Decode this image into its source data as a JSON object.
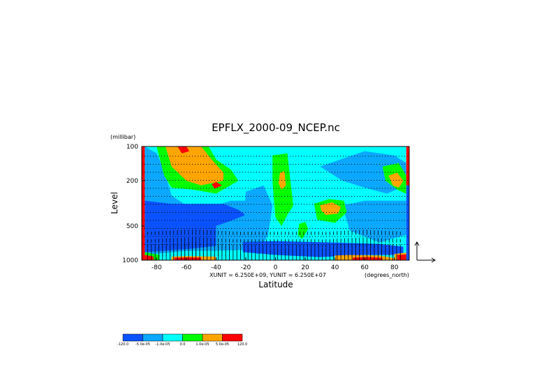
{
  "chart_data": {
    "type": "heatmap",
    "title": "EPFLX_2000-09_NCEP.nc",
    "xlabel": "Latitude",
    "ylabel": "Level",
    "y_unit": "(millibar)",
    "x_unit_note": "(degrees_north)",
    "x_range": [
      -90,
      90
    ],
    "y_range": [
      1000,
      100
    ],
    "y_scale": "log",
    "x_ticks": [
      -80,
      -60,
      -40,
      -20,
      0,
      20,
      40,
      60,
      80
    ],
    "x_tick_labels": [
      "-80",
      "-60",
      "-40",
      "-20",
      "0",
      "20",
      "40",
      "60",
      "80"
    ],
    "y_ticks": [
      100,
      200,
      500,
      1000
    ],
    "y_tick_labels": [
      "100",
      "200",
      "500",
      "1000"
    ],
    "vector_units": "XUNIT = 6.250E+09, YUNIT = 6.250E+07",
    "colorbar": {
      "labels": [
        "-120.0",
        "-5.0e-05",
        "-1.0e-05",
        "0.0",
        "1.0e-05",
        "5.0e-05",
        "120.0"
      ],
      "colors": [
        "#0b52ff",
        "#0aa8ff",
        "#00ffff",
        "#00ff00",
        "#ffa500",
        "#ff0000"
      ]
    },
    "field_regions": [
      {
        "shape": "rect",
        "color": "#00ffff",
        "x0": -88,
        "x1": 88,
        "y0": 1000,
        "y1": 100
      },
      {
        "shape": "poly",
        "color": "#0aa8ff",
        "points": [
          [
            -88,
            100
          ],
          [
            -80,
            115
          ],
          [
            -75,
            160
          ],
          [
            -70,
            270
          ],
          [
            -60,
            330
          ],
          [
            -50,
            320
          ],
          [
            -40,
            330
          ],
          [
            -30,
            300
          ],
          [
            -20,
            300
          ],
          [
            -15,
            350
          ],
          [
            -10,
            450
          ],
          [
            -10,
            800
          ],
          [
            -30,
            820
          ],
          [
            -60,
            830
          ],
          [
            -88,
            900
          ]
        ]
      },
      {
        "shape": "poly",
        "color": "#0b52ff",
        "points": [
          [
            -88,
            300
          ],
          [
            -70,
            320
          ],
          [
            -50,
            320
          ],
          [
            -35,
            320
          ],
          [
            -25,
            360
          ],
          [
            -20,
            400
          ],
          [
            -30,
            450
          ],
          [
            -40,
            500
          ],
          [
            -40,
            750
          ],
          [
            -60,
            800
          ],
          [
            -88,
            850
          ]
        ]
      },
      {
        "shape": "poly",
        "color": "#0aa8ff",
        "points": [
          [
            -20,
            250
          ],
          [
            -8,
            220
          ],
          [
            -2,
            330
          ],
          [
            -5,
            600
          ],
          [
            -12,
            900
          ],
          [
            -22,
            600
          ]
        ]
      },
      {
        "shape": "poly",
        "color": "#0aa8ff",
        "points": [
          [
            30,
            150
          ],
          [
            60,
            110
          ],
          [
            80,
            120
          ],
          [
            88,
            140
          ],
          [
            88,
            220
          ],
          [
            75,
            260
          ],
          [
            60,
            230
          ],
          [
            45,
            200
          ]
        ]
      },
      {
        "shape": "poly",
        "color": "#0b52ff",
        "points": [
          [
            60,
            320
          ],
          [
            70,
            300
          ],
          [
            80,
            310
          ],
          [
            85,
            380
          ],
          [
            80,
            500
          ],
          [
            68,
            520
          ],
          [
            60,
            450
          ]
        ]
      },
      {
        "shape": "poly",
        "color": "#0aa8ff",
        "points": [
          [
            45,
            330
          ],
          [
            60,
            300
          ],
          [
            88,
            300
          ],
          [
            88,
            600
          ],
          [
            70,
            700
          ],
          [
            50,
            550
          ]
        ]
      },
      {
        "shape": "poly",
        "color": "#0b52ff",
        "points": [
          [
            -22,
            690
          ],
          [
            0,
            680
          ],
          [
            40,
            700
          ],
          [
            70,
            720
          ],
          [
            86,
            760
          ],
          [
            86,
            900
          ],
          [
            60,
            900
          ],
          [
            30,
            940
          ],
          [
            0,
            900
          ],
          [
            -22,
            850
          ]
        ]
      },
      {
        "shape": "poly",
        "color": "#00ff00",
        "points": [
          [
            -80,
            100
          ],
          [
            -45,
            100
          ],
          [
            -40,
            130
          ],
          [
            -30,
            160
          ],
          [
            -25,
            200
          ],
          [
            -40,
            260
          ],
          [
            -55,
            240
          ],
          [
            -70,
            230
          ],
          [
            -75,
            180
          ]
        ]
      },
      {
        "shape": "poly",
        "color": "#ffa500",
        "points": [
          [
            -74,
            100
          ],
          [
            -50,
            100
          ],
          [
            -43,
            130
          ],
          [
            -35,
            170
          ],
          [
            -35,
            200
          ],
          [
            -50,
            220
          ],
          [
            -60,
            200
          ],
          [
            -70,
            150
          ]
        ]
      },
      {
        "shape": "poly",
        "color": "#ff0000",
        "points": [
          [
            -66,
            100
          ],
          [
            -60,
            100
          ],
          [
            -58,
            110
          ],
          [
            -63,
            115
          ]
        ]
      },
      {
        "shape": "poly",
        "color": "#ff0000",
        "points": [
          [
            -43,
            215
          ],
          [
            -40,
            205
          ],
          [
            -36,
            220
          ],
          [
            -41,
            235
          ]
        ]
      },
      {
        "shape": "poly",
        "color": "#00ff00",
        "points": [
          [
            -2,
            120
          ],
          [
            8,
            115
          ],
          [
            10,
            200
          ],
          [
            12,
            330
          ],
          [
            8,
            400
          ],
          [
            4,
            500
          ],
          [
            0,
            420
          ],
          [
            -1,
            300
          ],
          [
            -2,
            200
          ]
        ]
      },
      {
        "shape": "poly",
        "color": "#ffa500",
        "points": [
          [
            3,
            170
          ],
          [
            6,
            165
          ],
          [
            7,
            220
          ],
          [
            4,
            240
          ],
          [
            2,
            210
          ]
        ]
      },
      {
        "shape": "poly",
        "color": "#00ff00",
        "points": [
          [
            16,
            480
          ],
          [
            20,
            460
          ],
          [
            22,
            530
          ],
          [
            18,
            650
          ],
          [
            15,
            600
          ]
        ]
      },
      {
        "shape": "poly",
        "color": "#00ff00",
        "points": [
          [
            26,
            320
          ],
          [
            36,
            290
          ],
          [
            46,
            300
          ],
          [
            48,
            380
          ],
          [
            40,
            470
          ],
          [
            28,
            440
          ]
        ]
      },
      {
        "shape": "poly",
        "color": "#ffa500",
        "points": [
          [
            30,
            330
          ],
          [
            38,
            310
          ],
          [
            44,
            340
          ],
          [
            42,
            390
          ],
          [
            34,
            400
          ],
          [
            31,
            370
          ]
        ]
      },
      {
        "shape": "poly",
        "color": "#00ff00",
        "points": [
          [
            72,
            150
          ],
          [
            83,
            140
          ],
          [
            88,
            180
          ],
          [
            88,
            260
          ],
          [
            82,
            240
          ],
          [
            74,
            200
          ]
        ]
      },
      {
        "shape": "poly",
        "color": "#ffa500",
        "points": [
          [
            76,
            180
          ],
          [
            82,
            170
          ],
          [
            86,
            200
          ],
          [
            83,
            230
          ],
          [
            79,
            220
          ]
        ]
      },
      {
        "shape": "poly",
        "color": "#ffa500",
        "points": [
          [
            -70,
            930
          ],
          [
            -60,
            920
          ],
          [
            -40,
            930
          ],
          [
            -40,
            1000
          ],
          [
            -70,
            1000
          ]
        ]
      },
      {
        "shape": "poly",
        "color": "#ff0000",
        "points": [
          [
            -68,
            950
          ],
          [
            -58,
            945
          ],
          [
            -50,
            950
          ],
          [
            -50,
            1000
          ],
          [
            -68,
            1000
          ]
        ]
      },
      {
        "shape": "poly",
        "color": "#00ff00",
        "points": [
          [
            -88,
            850
          ],
          [
            -78,
            900
          ],
          [
            -78,
            1000
          ],
          [
            -88,
            1000
          ]
        ]
      },
      {
        "shape": "poly",
        "color": "#ff0000",
        "points": [
          [
            -88,
            900
          ],
          [
            -82,
            930
          ],
          [
            -82,
            1000
          ],
          [
            -88,
            1000
          ]
        ]
      },
      {
        "shape": "poly",
        "color": "#ffa500",
        "points": [
          [
            40,
            910
          ],
          [
            50,
            900
          ],
          [
            70,
            910
          ],
          [
            80,
            960
          ],
          [
            80,
            1000
          ],
          [
            40,
            1000
          ]
        ]
      },
      {
        "shape": "poly",
        "color": "#ff0000",
        "points": [
          [
            52,
            950
          ],
          [
            62,
            940
          ],
          [
            72,
            955
          ],
          [
            72,
            1000
          ],
          [
            52,
            1000
          ]
        ]
      },
      {
        "shape": "poly",
        "color": "#ffa500",
        "points": [
          [
            80,
            880
          ],
          [
            88,
            860
          ],
          [
            88,
            1000
          ],
          [
            80,
            1000
          ]
        ]
      },
      {
        "shape": "poly",
        "color": "#ff0000",
        "points": [
          [
            82,
            900
          ],
          [
            88,
            890
          ],
          [
            88,
            1000
          ],
          [
            82,
            1000
          ]
        ]
      },
      {
        "shape": "rect",
        "color": "#ff0000",
        "x0": -90,
        "x1": -88,
        "y0": 1000,
        "y1": 100
      },
      {
        "shape": "rect",
        "color": "#ff0000",
        "x0": 88,
        "x1": 90,
        "y0": 220,
        "y1": 100
      },
      {
        "shape": "rect",
        "color": "#0b52ff",
        "x0": 88,
        "x1": 90,
        "y0": 1000,
        "y1": 220
      }
    ]
  }
}
